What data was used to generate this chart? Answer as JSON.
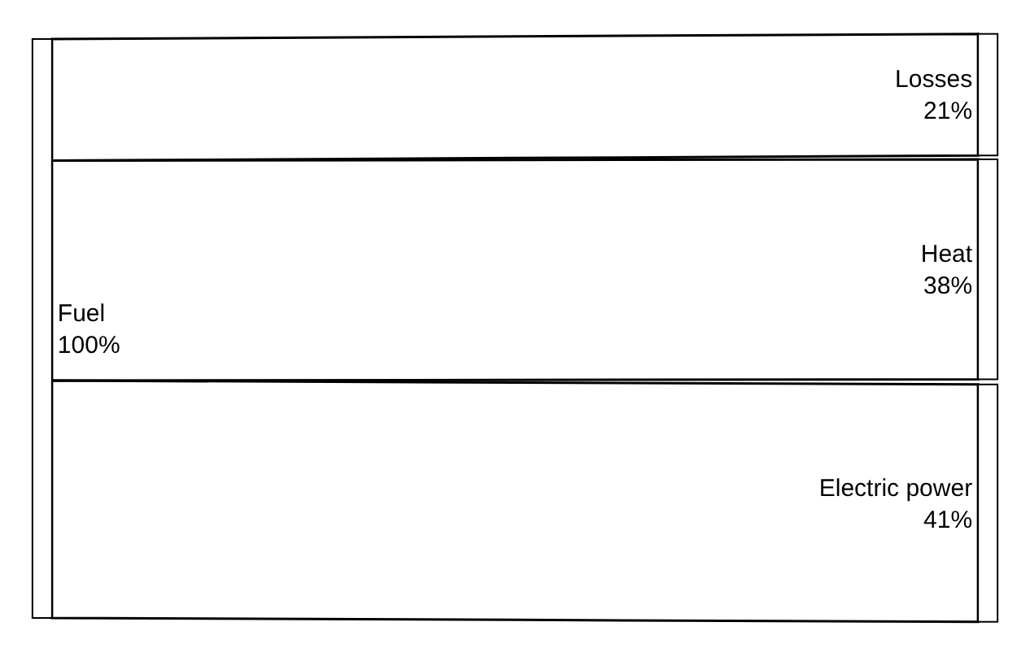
{
  "chart_data": {
    "type": "other",
    "categories": [
      "Fuel",
      "Losses",
      "Heat",
      "Electric power"
    ],
    "values": [
      100,
      21,
      38,
      41
    ],
    "value_labels": [
      "100%",
      "21%",
      "38%",
      "41%"
    ],
    "colors": [
      "#ffffff",
      "#ffffff",
      "#ffffff",
      "#ffffff"
    ]
  }
}
